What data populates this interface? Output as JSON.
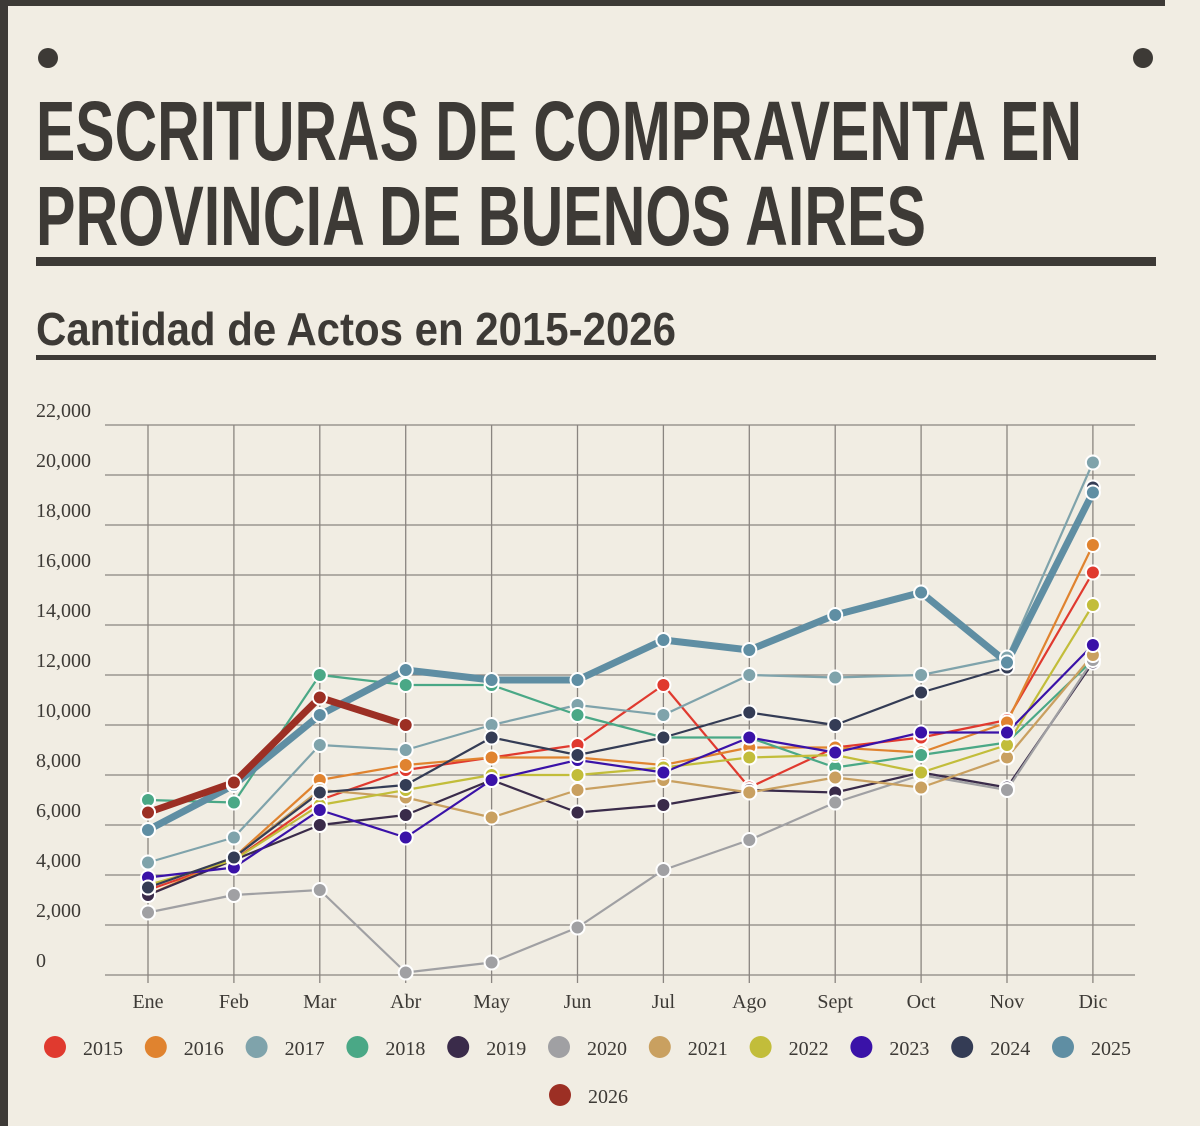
{
  "chart_data": {
    "type": "line",
    "title": [
      "ESCRITURAS DE COMPRAVENTA EN",
      "PROVINCIA DE BUENOS AIRES"
    ],
    "subtitle": "Cantidad de Actos en 2015-2026",
    "categories": [
      "Ene",
      "Feb",
      "Mar",
      "Abr",
      "May",
      "Jun",
      "Jul",
      "Ago",
      "Sept",
      "Oct",
      "Nov",
      "Dic"
    ],
    "ylim": [
      0,
      22000
    ],
    "yticks": [
      0,
      {
        "value": 2000,
        "label": "2,000"
      },
      {
        "value": 4000,
        "label": "4,000"
      },
      {
        "value": 6000,
        "label": "6,000"
      },
      {
        "value": 8000,
        "label": "8,000"
      },
      {
        "value": 10000,
        "label": "10,000"
      },
      {
        "value": 12000,
        "label": "12,000"
      },
      {
        "value": 14000,
        "label": "14,000"
      },
      {
        "value": 16000,
        "label": "16,000"
      },
      {
        "value": 18000,
        "label": "18,000"
      },
      {
        "value": 20000,
        "label": "20,000"
      },
      {
        "value": 22000,
        "label": "22,000"
      }
    ],
    "grid": true,
    "legend": "bottom",
    "series": [
      {
        "name": "2015",
        "color": "#e03a2f",
        "values": [
          3400,
          4600,
          7000,
          8200,
          8700,
          9200,
          11600,
          7500,
          9100,
          9500,
          10200,
          16100
        ]
      },
      {
        "name": "2016",
        "color": "#e0832f",
        "values": [
          3200,
          4700,
          7800,
          8400,
          8700,
          8700,
          8400,
          9100,
          9100,
          8900,
          10100,
          17200
        ]
      },
      {
        "name": "2017",
        "color": "#7fa3ab",
        "values": [
          4500,
          5500,
          9200,
          9000,
          10000,
          10800,
          10400,
          12000,
          11900,
          12000,
          12700,
          20500
        ]
      },
      {
        "name": "2018",
        "color": "#4aa886",
        "values": [
          7000,
          6900,
          12000,
          11600,
          11600,
          10400,
          9500,
          9500,
          8300,
          8800,
          9300,
          12600
        ]
      },
      {
        "name": "2019",
        "color": "#3a2b4a",
        "values": [
          3200,
          4600,
          6000,
          6400,
          7800,
          6500,
          6800,
          7400,
          7300,
          8100,
          7500,
          12500
        ]
      },
      {
        "name": "2020",
        "color": "#a0a0a3",
        "values": [
          2500,
          3200,
          3400,
          100,
          500,
          1900,
          4200,
          5400,
          6900,
          8000,
          7400,
          12600
        ]
      },
      {
        "name": "2021",
        "color": "#c9a060",
        "values": [
          3500,
          4700,
          7400,
          7100,
          6300,
          7400,
          7800,
          7300,
          7900,
          7500,
          8700,
          12800
        ]
      },
      {
        "name": "2022",
        "color": "#c2bd3a",
        "values": [
          3600,
          4600,
          6800,
          7400,
          8000,
          8000,
          8300,
          8700,
          8800,
          8100,
          9200,
          14800
        ]
      },
      {
        "name": "2023",
        "color": "#3a12a8",
        "values": [
          3900,
          4300,
          6600,
          5500,
          7800,
          8600,
          8100,
          9500,
          8900,
          9700,
          9700,
          13200
        ]
      },
      {
        "name": "2024",
        "color": "#343c55",
        "values": [
          3500,
          4700,
          7300,
          7600,
          9500,
          8800,
          9500,
          10500,
          10000,
          11300,
          12300,
          19500
        ]
      },
      {
        "name": "2025",
        "color": "#5f8ea3",
        "highlight": true,
        "values": [
          5800,
          7600,
          10400,
          12200,
          11800,
          11800,
          13400,
          13000,
          14400,
          15300,
          12500,
          19300
        ]
      },
      {
        "name": "2026",
        "color": "#9c2f24",
        "highlight": true,
        "values": [
          6500,
          7700,
          11100,
          10000,
          null,
          null,
          null,
          null,
          null,
          null,
          null,
          null
        ]
      }
    ]
  }
}
